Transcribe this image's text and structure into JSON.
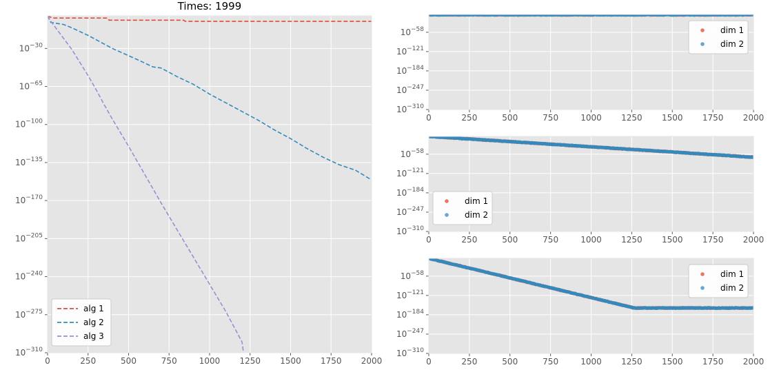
{
  "figure": {
    "title": "Times: 1999"
  },
  "chart_data": [
    {
      "type": "line",
      "title": "Times: 1999",
      "yscale": "log",
      "xlim": [
        0,
        2000
      ],
      "ylim_exp": [
        -310,
        0
      ],
      "grid": true,
      "legend_position": "lower-left",
      "xticks": [
        "0",
        "250",
        "500",
        "750",
        "1000",
        "1250",
        "1500",
        "1750",
        "2000"
      ],
      "yticks_exp": [
        -30,
        -65,
        -100,
        -135,
        -170,
        -205,
        -240,
        -275,
        -310
      ],
      "series": [
        {
          "name": "alg 1",
          "color": "#E24A33",
          "style": "dashed",
          "x": [
            0,
            30,
            370,
            380,
            840,
            850,
            2000
          ],
          "y_exp": [
            0,
            -2,
            -2,
            -4,
            -4,
            -5,
            -5
          ]
        },
        {
          "name": "alg 2",
          "color": "#348ABD",
          "style": "dashed",
          "x": [
            0,
            20,
            100,
            150,
            250,
            400,
            550,
            650,
            700,
            800,
            900,
            1000,
            1100,
            1200,
            1300,
            1400,
            1500,
            1600,
            1700,
            1800,
            1900,
            2000
          ],
          "y_exp": [
            0,
            -6,
            -8,
            -11,
            -18,
            -30,
            -40,
            -47,
            -48,
            -56,
            -63,
            -72,
            -80,
            -88,
            -96,
            -105,
            -113,
            -122,
            -130,
            -137,
            -142,
            -151
          ]
        },
        {
          "name": "alg 3",
          "color": "#988ED5",
          "style": "dashed",
          "x": [
            0,
            25,
            50,
            75,
            100,
            150,
            200,
            250,
            300,
            350,
            400,
            500,
            600,
            700,
            800,
            900,
            1000,
            1100,
            1200,
            1210
          ],
          "y_exp": [
            0,
            -6,
            -11,
            -16,
            -21,
            -31,
            -43,
            -55,
            -68,
            -82,
            -95,
            -120,
            -146,
            -172,
            -197,
            -222,
            -247,
            -272,
            -300,
            -310
          ]
        }
      ]
    },
    {
      "type": "scatter",
      "yscale": "log",
      "xlim": [
        0,
        2000
      ],
      "ylim_exp": [
        -310,
        0
      ],
      "grid": true,
      "legend_position": "top-right",
      "xticks": [
        "0",
        "250",
        "500",
        "750",
        "1000",
        "1250",
        "1500",
        "1750",
        "2000"
      ],
      "yticks_exp": [
        -58,
        -121,
        -184,
        -247,
        -310
      ],
      "series": [
        {
          "name": "dim 1",
          "color": "#E24A33",
          "trend_x": [
            0,
            2000
          ],
          "trend_y_exp": [
            -1,
            -1
          ]
        },
        {
          "name": "dim 2",
          "color": "#348ABD",
          "trend_x": [
            0,
            2000
          ],
          "trend_y_exp": [
            -1,
            -1
          ]
        }
      ]
    },
    {
      "type": "scatter",
      "yscale": "log",
      "xlim": [
        0,
        2000
      ],
      "ylim_exp": [
        -310,
        0
      ],
      "grid": true,
      "legend_position": "lower-left",
      "xticks": [
        "0",
        "250",
        "500",
        "750",
        "1000",
        "1250",
        "1500",
        "1750",
        "2000"
      ],
      "yticks_exp": [
        -58,
        -121,
        -184,
        -247,
        -310
      ],
      "series": [
        {
          "name": "dim 1",
          "color": "#E24A33",
          "trend_x": [
            0,
            2000
          ],
          "trend_y_exp": [
            0,
            -68
          ]
        },
        {
          "name": "dim 2",
          "color": "#348ABD",
          "trend_x": [
            0,
            2000
          ],
          "trend_y_exp": [
            0,
            -68
          ]
        }
      ]
    },
    {
      "type": "scatter",
      "yscale": "log",
      "xlim": [
        0,
        2000
      ],
      "ylim_exp": [
        -310,
        0
      ],
      "grid": true,
      "legend_position": "top-right",
      "xticks": [
        "0",
        "250",
        "500",
        "750",
        "1000",
        "1250",
        "1500",
        "1750",
        "2000"
      ],
      "yticks_exp": [
        -58,
        -121,
        -184,
        -247,
        -310
      ],
      "series": [
        {
          "name": "dim 1",
          "color": "#E24A33",
          "trend_x": [
            0,
            1250,
            1260,
            2000
          ],
          "trend_y_exp": [
            0,
            -160,
            -162,
            -162
          ]
        },
        {
          "name": "dim 2",
          "color": "#348ABD",
          "trend_x": [
            0,
            1250,
            1260,
            2000
          ],
          "trend_y_exp": [
            0,
            -160,
            -162,
            -162
          ]
        }
      ]
    }
  ]
}
